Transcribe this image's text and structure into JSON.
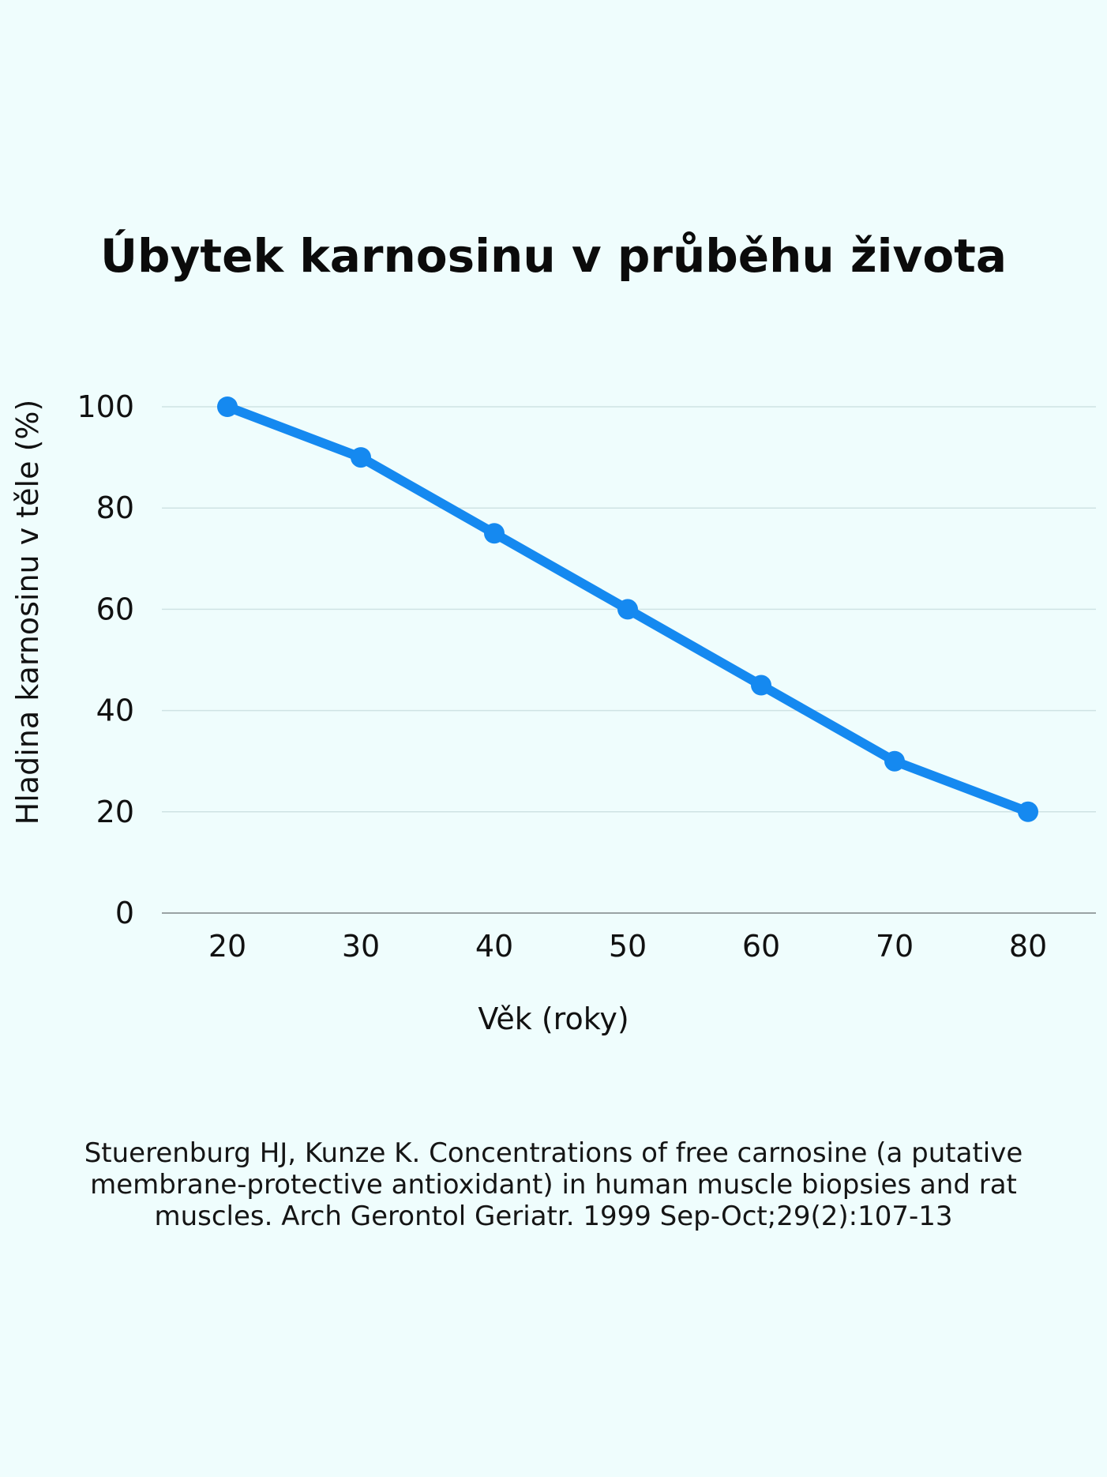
{
  "title": "Úbytek karnosinu v průběhu života",
  "chart_data": {
    "type": "line",
    "title": "Úbytek karnosinu v průběhu života",
    "xlabel": "Věk (roky)",
    "ylabel": "Hladina karnosinu v těle (%)",
    "x": [
      20,
      30,
      40,
      50,
      60,
      70,
      80
    ],
    "categories": [
      "20",
      "30",
      "40",
      "50",
      "60",
      "70",
      "80"
    ],
    "series": [
      {
        "name": "Hladina karnosinu",
        "values": [
          100,
          90,
          75,
          60,
          45,
          30,
          20
        ],
        "color": "#1589f0"
      }
    ],
    "ylim": [
      0,
      100
    ],
    "yticks": [
      0,
      20,
      40,
      60,
      80,
      100
    ],
    "grid": true,
    "legend": "none"
  },
  "labels": {
    "xlabel": "Věk (roky)",
    "ylabel": "Hladina karnosinu v těle (%)",
    "yticks": [
      "0",
      "20",
      "40",
      "60",
      "80",
      "100"
    ],
    "xticks": [
      "20",
      "30",
      "40",
      "50",
      "60",
      "70",
      "80"
    ]
  },
  "colors": {
    "background": "#effdfd",
    "line": "#1589f0",
    "grid": "#cfe3e4",
    "axis": "#9aa3a4"
  },
  "citation": "Stuerenburg HJ, Kunze K. Concentrations of free carnosine (a putative membrane-protective antioxidant) in human muscle biopsies and rat muscles. Arch Gerontol Geriatr. 1999 Sep-Oct;29(2):107-13"
}
